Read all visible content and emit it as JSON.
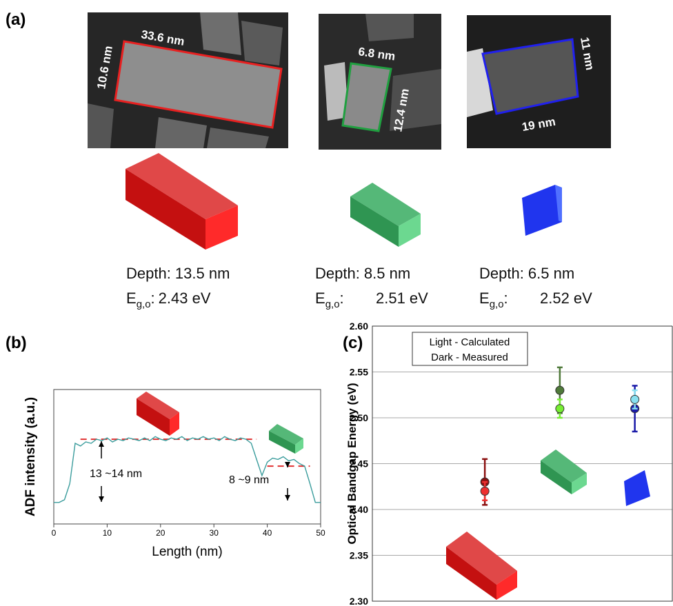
{
  "panel_a": {
    "label": "(a)",
    "images": [
      {
        "labels": [
          "33.6 nm",
          "10.6 nm"
        ]
      },
      {
        "labels": [
          "6.8 nm",
          "12.4 nm"
        ]
      },
      {
        "labels": [
          "11 nm",
          "19 nm"
        ]
      }
    ],
    "columns": [
      {
        "depth": "Depth: 13.5 nm",
        "energy_symbol": "E",
        "energy_subscript": "g,o",
        "energy_colon": ":",
        "energy_value": "2.43 eV"
      },
      {
        "depth": "Depth: 8.5 nm",
        "energy_symbol": "E",
        "energy_subscript": "g,o",
        "energy_colon": ":",
        "energy_value": "2.51 eV"
      },
      {
        "depth": "Depth: 6.5 nm",
        "energy_symbol": "E",
        "energy_subscript": "g,o",
        "energy_colon": ":",
        "energy_value": "2.52 eV"
      }
    ]
  },
  "chart_data": [
    {
      "type": "line",
      "panel_label": "(b)",
      "x_label": "Length (nm)",
      "y_label": "ADF intensity (a.u.)",
      "xlim": [
        0,
        50
      ],
      "xticks": [
        0,
        10,
        20,
        30,
        40,
        50
      ],
      "ylim": [
        0,
        1
      ],
      "color": "#3a9c9c",
      "x": [
        0,
        1,
        2,
        3,
        4,
        5,
        6,
        7,
        8,
        9,
        10,
        11,
        12,
        13,
        14,
        15,
        16,
        17,
        18,
        19,
        20,
        21,
        22,
        23,
        24,
        25,
        26,
        27,
        28,
        29,
        30,
        31,
        32,
        33,
        34,
        35,
        36,
        37,
        38,
        39,
        40,
        41,
        42,
        43,
        44,
        45,
        46,
        47,
        48,
        49,
        50
      ],
      "values": [
        0.16,
        0.16,
        0.18,
        0.3,
        0.6,
        0.58,
        0.61,
        0.6,
        0.63,
        0.62,
        0.64,
        0.61,
        0.63,
        0.62,
        0.64,
        0.63,
        0.62,
        0.64,
        0.62,
        0.65,
        0.63,
        0.62,
        0.64,
        0.63,
        0.65,
        0.62,
        0.64,
        0.63,
        0.65,
        0.63,
        0.64,
        0.62,
        0.65,
        0.63,
        0.62,
        0.64,
        0.63,
        0.6,
        0.48,
        0.36,
        0.46,
        0.49,
        0.48,
        0.5,
        0.47,
        0.48,
        0.45,
        0.43,
        0.3,
        0.16,
        0.16
      ],
      "reference_lines": [
        {
          "value": 0.63,
          "from": 5,
          "to": 38,
          "color": "#e03030"
        },
        {
          "value": 0.43,
          "from": 40,
          "to": 48,
          "color": "#e03030"
        }
      ],
      "annotations": [
        "13 ~14 nm",
        "8 ~9 nm"
      ]
    },
    {
      "type": "scatter",
      "panel_label": "(c)",
      "y_label": "Optical Bandgap Energy (eV)",
      "legend_lines": [
        "Light - Calculated",
        "Dark - Measured"
      ],
      "ylim": [
        2.3,
        2.6
      ],
      "yticks": [
        {
          "value": 2.3,
          "label": "2.30"
        },
        {
          "value": 2.35,
          "label": "2.35"
        },
        {
          "value": 2.4,
          "label": "2.40"
        },
        {
          "value": 2.45,
          "label": "2.45"
        },
        {
          "value": 2.5,
          "label": "2.50"
        },
        {
          "value": 2.55,
          "label": "2.55"
        },
        {
          "value": 2.6,
          "label": "2.60"
        }
      ],
      "grid": true,
      "categories": [
        null,
        null,
        null,
        null
      ],
      "series": [
        {
          "values": [
            null,
            2.43,
            2.53,
            2.51
          ],
          "errors": [
            null,
            0.025,
            0.025,
            0.025
          ],
          "colors": [
            null,
            "#8b1010",
            "#4f7a3a",
            "#1a1aa8"
          ]
        },
        {
          "values": [
            null,
            2.42,
            2.51,
            2.52
          ],
          "errors": [
            null,
            0.01,
            0.01,
            0.01
          ],
          "colors": [
            null,
            "#ee3030",
            "#77ee33",
            "#88e0f0"
          ]
        }
      ]
    }
  ]
}
